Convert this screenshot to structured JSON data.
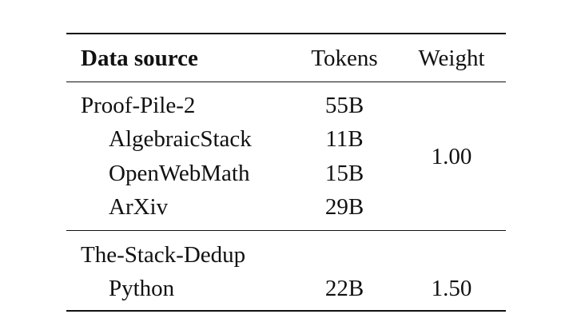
{
  "table": {
    "headers": {
      "source": "Data source",
      "tokens": "Tokens",
      "weight": "Weight"
    },
    "groups": [
      {
        "name": "Proof-Pile-2",
        "tokens": "55B",
        "weight": "1.00",
        "children": [
          {
            "name": "AlgebraicStack",
            "tokens": "11B"
          },
          {
            "name": "OpenWebMath",
            "tokens": "15B"
          },
          {
            "name": "ArXiv",
            "tokens": "29B"
          }
        ]
      },
      {
        "name": "The-Stack-Dedup",
        "tokens": "",
        "weight": "1.50",
        "children": [
          {
            "name": "Python",
            "tokens": "22B"
          }
        ]
      }
    ]
  }
}
